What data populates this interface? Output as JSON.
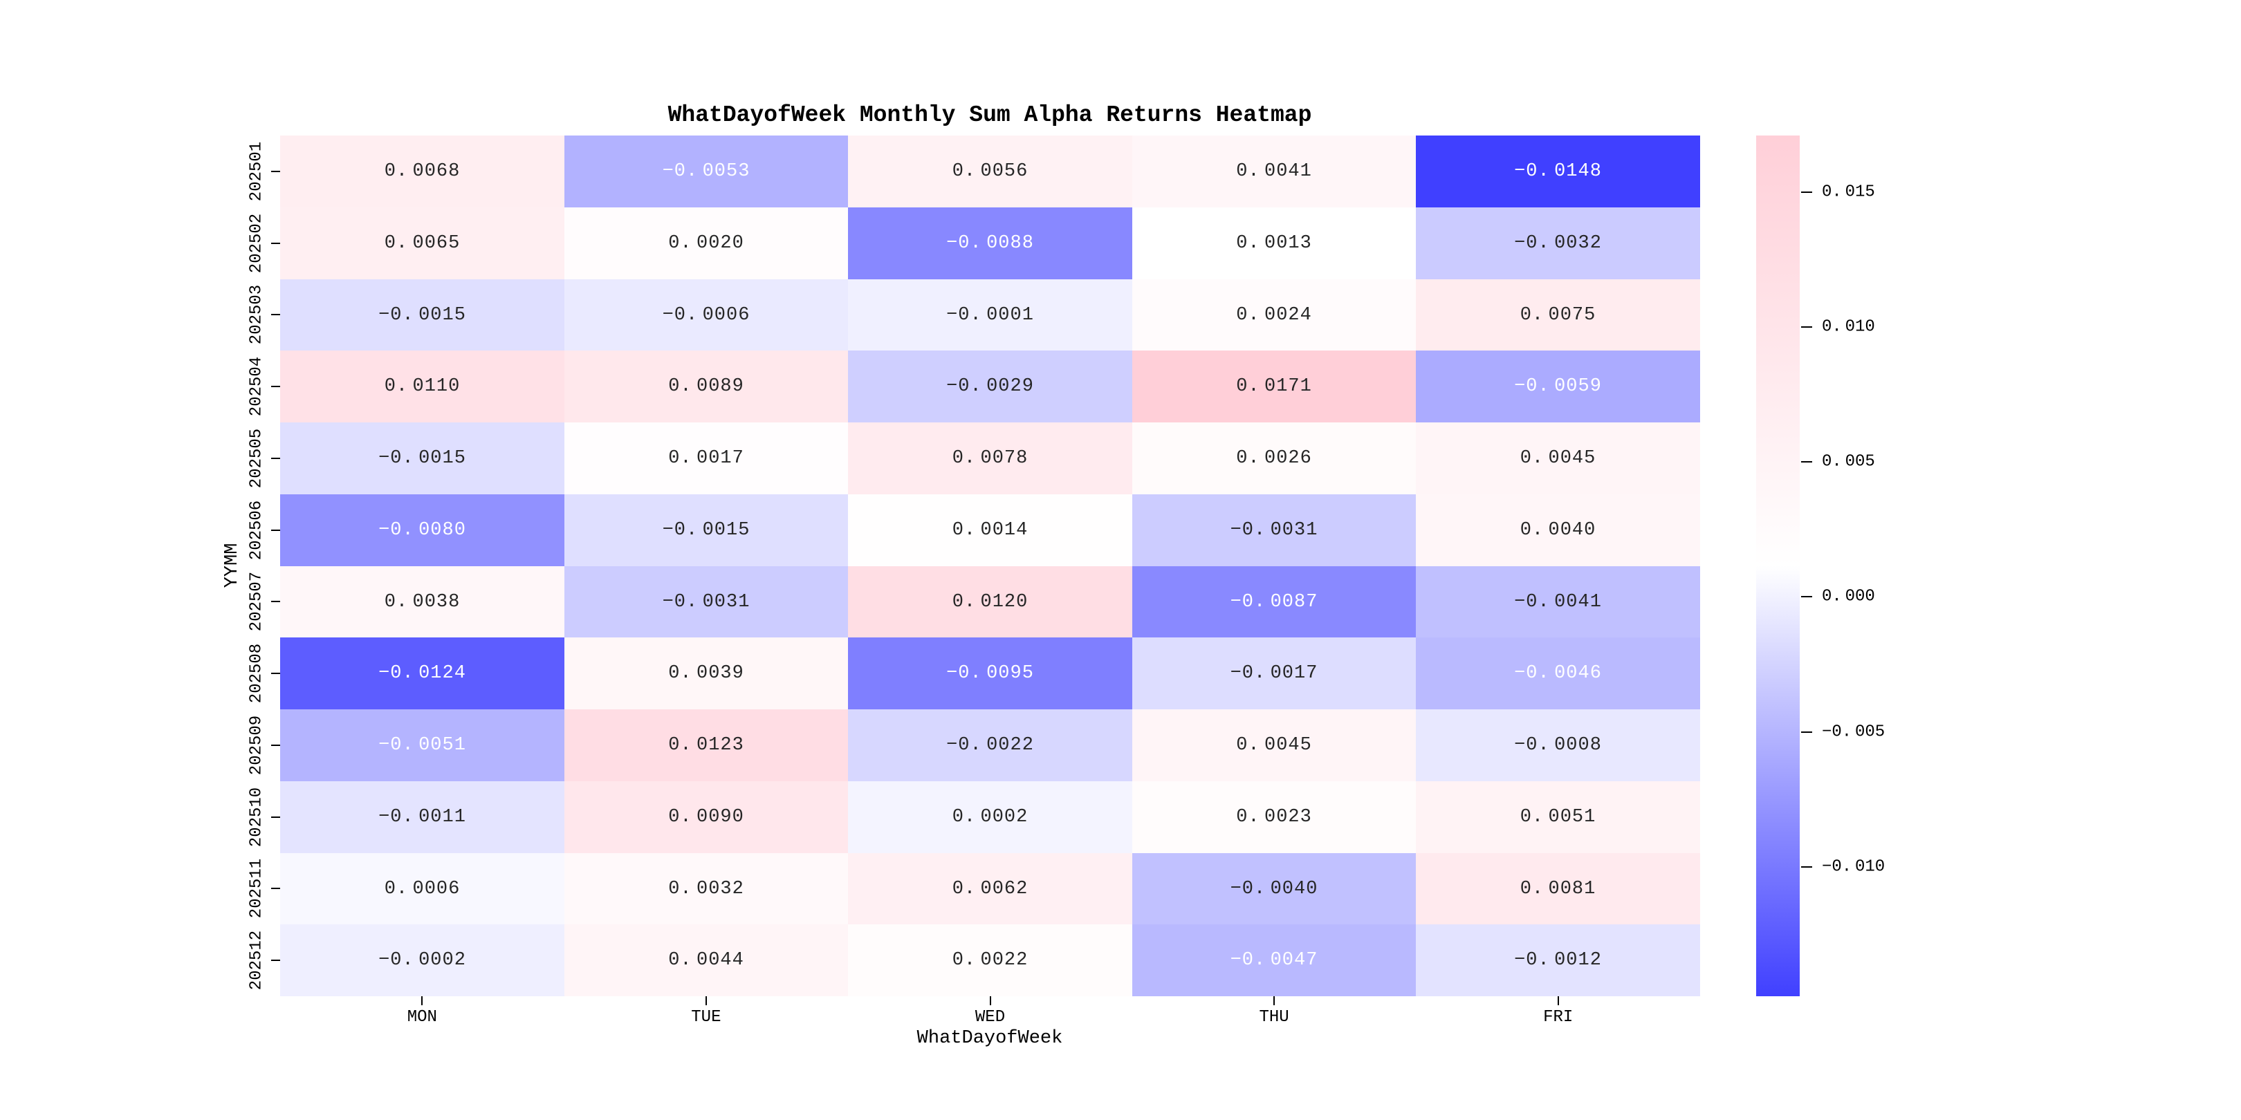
{
  "chart_data": {
    "type": "heatmap",
    "title": "WhatDayofWeek Monthly Sum Alpha Returns Heatmap",
    "xlabel": "WhatDayofWeek",
    "ylabel": "YYMM",
    "columns": [
      "MON",
      "TUE",
      "WED",
      "THU",
      "FRI"
    ],
    "rows": [
      "202501",
      "202502",
      "202503",
      "202504",
      "202505",
      "202506",
      "202507",
      "202508",
      "202509",
      "202510",
      "202511",
      "202512"
    ],
    "values": [
      [
        0.0068,
        -0.0053,
        0.0056,
        0.0041,
        -0.0148
      ],
      [
        0.0065,
        0.002,
        -0.0088,
        0.0013,
        -0.0032
      ],
      [
        -0.0015,
        -0.0006,
        -0.0001,
        0.0024,
        0.0075
      ],
      [
        0.011,
        0.0089,
        -0.0029,
        0.0171,
        -0.0059
      ],
      [
        -0.0015,
        0.0017,
        0.0078,
        0.0026,
        0.0045
      ],
      [
        -0.008,
        -0.0015,
        0.0014,
        -0.0031,
        0.004
      ],
      [
        0.0038,
        -0.0031,
        0.012,
        -0.0087,
        -0.0041
      ],
      [
        -0.0124,
        0.0039,
        -0.0095,
        -0.0017,
        -0.0046
      ],
      [
        -0.0051,
        0.0123,
        -0.0022,
        0.0045,
        -0.0008
      ],
      [
        -0.0011,
        0.009,
        0.0002,
        0.0023,
        0.0051
      ],
      [
        0.0006,
        0.0032,
        0.0062,
        -0.004,
        0.0081
      ],
      [
        -0.0002,
        0.0044,
        0.0022,
        -0.0047,
        -0.0012
      ]
    ],
    "vmin": -0.0148,
    "vmax": 0.0171,
    "colorbar_ticks": [
      0.015,
      0.01,
      0.005,
      0.0,
      -0.005,
      -0.01
    ],
    "colormap": {
      "negative_end": "#4040FF",
      "center": "#FFFFFF",
      "positive_end": "#FFCFD8"
    },
    "annotation_colors": {
      "dark": "#262626",
      "light": "#FFFFFF"
    },
    "white_text_threshold": -0.0045,
    "legend_position": "right",
    "grid": false
  }
}
